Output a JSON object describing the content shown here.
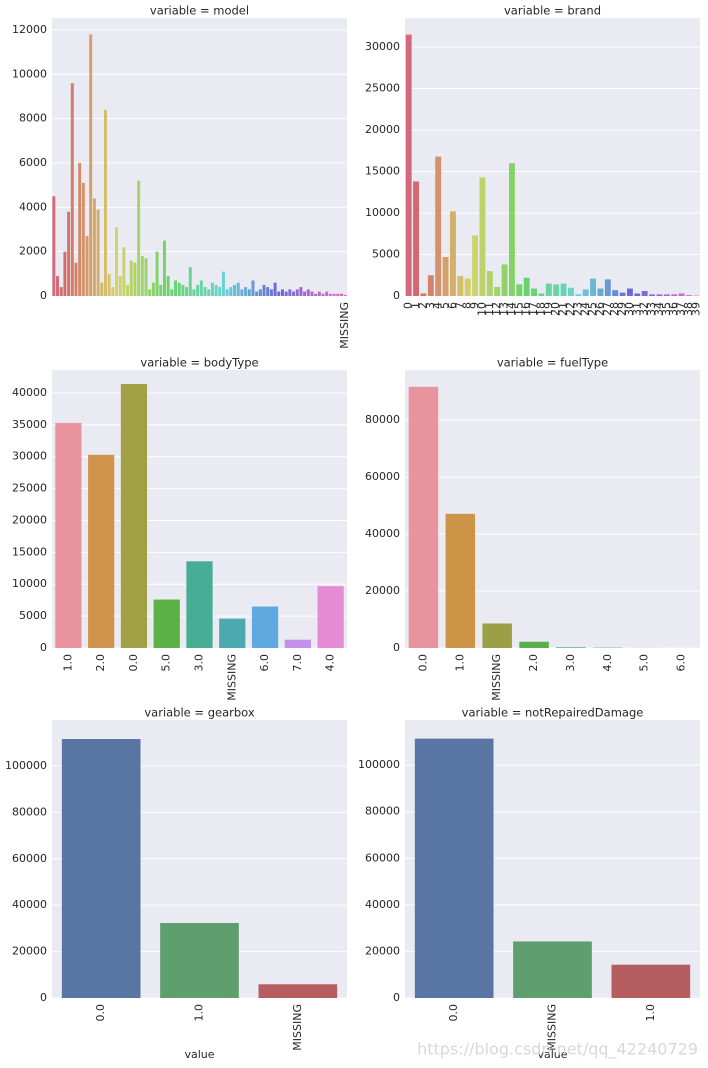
{
  "chart_data": [
    {
      "type": "bar",
      "title": "variable = model",
      "palette": "husl",
      "categories": [
        null,
        null,
        null,
        null,
        null,
        null,
        null,
        null,
        null,
        null,
        null,
        null,
        null,
        null,
        null,
        null,
        null,
        null,
        null,
        null,
        null,
        null,
        null,
        null,
        null,
        null,
        null,
        null,
        null,
        null,
        null,
        null,
        null,
        null,
        null,
        null,
        null,
        null,
        null,
        null,
        null,
        null,
        null,
        null,
        null,
        null,
        null,
        null,
        null,
        null,
        null,
        null,
        null,
        null,
        null,
        null,
        null,
        null,
        null,
        null,
        null,
        null,
        null,
        null,
        null,
        null,
        null,
        null,
        null,
        null,
        null,
        null,
        null,
        null,
        null,
        null,
        null,
        null,
        null,
        "MISSING"
      ],
      "values": [
        4500,
        900,
        400,
        2000,
        3800,
        9600,
        1500,
        6000,
        5100,
        2700,
        11800,
        4400,
        3900,
        600,
        8400,
        1000,
        400,
        3100,
        900,
        2200,
        500,
        1600,
        1500,
        5200,
        1800,
        1700,
        300,
        600,
        2000,
        500,
        2500,
        900,
        300,
        700,
        600,
        500,
        400,
        1300,
        300,
        500,
        700,
        400,
        300,
        600,
        500,
        400,
        1100,
        300,
        400,
        500,
        600,
        300,
        400,
        300,
        700,
        200,
        300,
        500,
        400,
        300,
        600,
        200,
        300,
        200,
        300,
        200,
        300,
        400,
        200,
        300,
        200,
        100,
        200,
        100,
        200,
        100,
        100,
        100,
        100,
        50
      ],
      "ylim": [
        0,
        12540
      ],
      "yticks": [
        0,
        2000,
        4000,
        6000,
        8000,
        10000,
        12000
      ],
      "grid": true
    },
    {
      "type": "bar",
      "title": "variable = brand",
      "palette": "husl",
      "categories": [
        "0",
        "1",
        "2",
        "3",
        "4",
        "5",
        "6",
        "7",
        "8",
        "9",
        "10",
        "11",
        "12",
        "13",
        "14",
        "15",
        "16",
        "17",
        "18",
        "19",
        "20",
        "21",
        "22",
        "23",
        "24",
        "25",
        "26",
        "27",
        "28",
        "29",
        "30",
        "31",
        "32",
        "33",
        "34",
        "35",
        "36",
        "37",
        "38",
        "39"
      ],
      "values": [
        31500,
        13800,
        300,
        2500,
        16800,
        4700,
        10200,
        2400,
        2100,
        7300,
        14300,
        3000,
        1100,
        3800,
        16000,
        1400,
        2200,
        900,
        300,
        1500,
        1400,
        1500,
        1000,
        200,
        800,
        2100,
        900,
        2000,
        700,
        400,
        900,
        300,
        600,
        200,
        200,
        200,
        200,
        300,
        100,
        50
      ],
      "ylim": [
        0,
        33500
      ],
      "yticks": [
        0,
        5000,
        10000,
        15000,
        20000,
        25000,
        30000
      ],
      "grid": true
    },
    {
      "type": "bar",
      "title": "variable = bodyType",
      "categories": [
        "1.0",
        "2.0",
        "0.0",
        "5.0",
        "3.0",
        "MISSING",
        "6.0",
        "7.0",
        "4.0"
      ],
      "values": [
        35300,
        30300,
        41400,
        7600,
        13600,
        4600,
        6500,
        1300,
        9700
      ],
      "colors": [
        "#e8939e",
        "#d0934b",
        "#a2a045",
        "#5db046",
        "#48ad95",
        "#4ca9b0",
        "#5ea9e0",
        "#c491ea",
        "#e68ad3"
      ],
      "ylim": [
        0,
        43600
      ],
      "yticks": [
        0,
        5000,
        10000,
        15000,
        20000,
        25000,
        30000,
        35000,
        40000
      ],
      "grid": true
    },
    {
      "type": "bar",
      "title": "variable = fuelType",
      "categories": [
        "0.0",
        "1.0",
        "MISSING",
        "2.0",
        "3.0",
        "4.0",
        "5.0",
        "6.0"
      ],
      "values": [
        91700,
        47100,
        8600,
        2200,
        250,
        120,
        40,
        20
      ],
      "colors": [
        "#e8939e",
        "#cc9447",
        "#9c9f45",
        "#5cae4a",
        "#49ac9c",
        "#4fa8b8",
        "#a8a8e6",
        "#e49bd6"
      ],
      "ylim": [
        0,
        97600
      ],
      "yticks": [
        0,
        20000,
        40000,
        60000,
        80000
      ],
      "grid": true
    },
    {
      "type": "bar",
      "title": "variable = gearbox",
      "xlabel": "value",
      "categories": [
        "0.0",
        "1.0",
        "MISSING"
      ],
      "values": [
        111600,
        32300,
        5900
      ],
      "colors": [
        "#5975a4",
        "#5f9e6e",
        "#b55d60"
      ],
      "ylim": [
        0,
        119800
      ],
      "yticks": [
        0,
        20000,
        40000,
        60000,
        80000,
        100000
      ],
      "grid": true
    },
    {
      "type": "bar",
      "title": "variable = notRepairedDamage",
      "xlabel": "value",
      "categories": [
        "0.0",
        "MISSING",
        "1.0"
      ],
      "values": [
        111400,
        24300,
        14300
      ],
      "colors": [
        "#5975a4",
        "#5f9e6e",
        "#b55d60"
      ],
      "ylim": [
        0,
        119400
      ],
      "yticks": [
        0,
        20000,
        40000,
        60000,
        80000,
        100000
      ],
      "grid": true
    }
  ],
  "watermark": "https://blog.csdn.net/qq_42240729"
}
